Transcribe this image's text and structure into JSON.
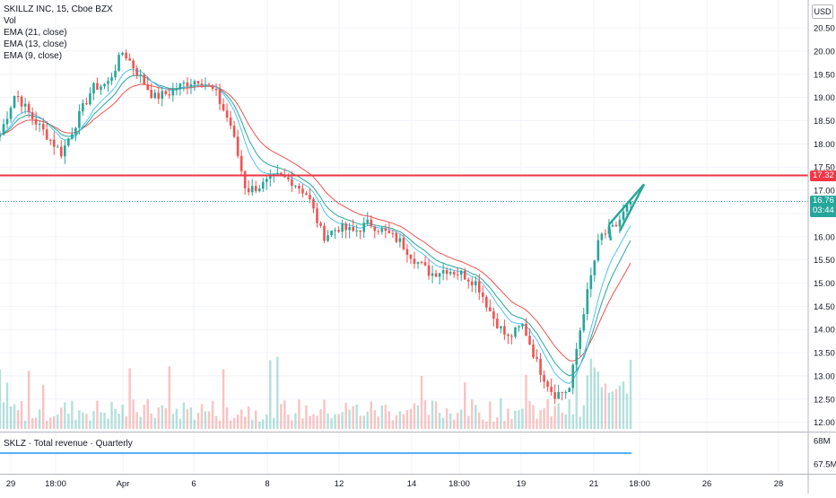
{
  "legend": {
    "symbol": "SKILLZ INC, 15, Cboe BZX",
    "volume": "Vol",
    "ema21": "EMA (21, close)",
    "ema13": "EMA (13, close)",
    "ema9": "EMA (9, close)"
  },
  "currency_label": "USD",
  "sub_panel": {
    "title": "SKLZ · Total revenue · Quarterly",
    "ticks": [
      "68M",
      "67.5M"
    ],
    "line_color": "#2196f3"
  },
  "price_tags": {
    "resistance": {
      "value": "17.32",
      "color": "#f23645"
    },
    "last": {
      "value": "16.76",
      "countdown": "03:44",
      "color": "#26a69a"
    }
  },
  "chart_data": {
    "type": "line",
    "title": "SKILLZ INC, 15, Cboe BZX",
    "y_axis": {
      "ticks": [
        "20.50",
        "20.00",
        "19.50",
        "19.00",
        "18.50",
        "18.00",
        "17.50",
        "17.00",
        "16.50",
        "16.00",
        "15.50",
        "15.00",
        "14.50",
        "14.00",
        "13.50",
        "13.00",
        "12.50",
        "12.00"
      ],
      "range": [
        11.8,
        21.1
      ]
    },
    "x_axis": {
      "ticks": [
        "29",
        "18:00",
        "Apr",
        "6",
        "8",
        "12",
        "14",
        "18:00",
        "19",
        "21",
        "18:00",
        "26",
        "28"
      ]
    },
    "price_path": [
      {
        "x": "29",
        "y": 18.2
      },
      {
        "x": "",
        "y": 19.1
      },
      {
        "x": "",
        "y": 18.6
      },
      {
        "x": "18:00",
        "y": 18.2
      },
      {
        "x": "",
        "y": 17.8
      },
      {
        "x": "",
        "y": 18.5
      },
      {
        "x": "",
        "y": 19.2
      },
      {
        "x": "",
        "y": 19.3
      },
      {
        "x": "Apr",
        "y": 20.0
      },
      {
        "x": "",
        "y": 19.5
      },
      {
        "x": "",
        "y": 19.0
      },
      {
        "x": "",
        "y": 19.1
      },
      {
        "x": "6",
        "y": 19.3
      },
      {
        "x": "",
        "y": 19.4
      },
      {
        "x": "",
        "y": 19.1
      },
      {
        "x": "",
        "y": 18.4
      },
      {
        "x": "8",
        "y": 17.0
      },
      {
        "x": "",
        "y": 17.1
      },
      {
        "x": "",
        "y": 17.3
      },
      {
        "x": "",
        "y": 17.2
      },
      {
        "x": "12",
        "y": 16.9
      },
      {
        "x": "",
        "y": 16.0
      },
      {
        "x": "",
        "y": 16.2
      },
      {
        "x": "",
        "y": 16.1
      },
      {
        "x": "14",
        "y": 16.3
      },
      {
        "x": "",
        "y": 16.1
      },
      {
        "x": "",
        "y": 15.9
      },
      {
        "x": "18:00",
        "y": 15.5
      },
      {
        "x": "",
        "y": 15.2
      },
      {
        "x": "",
        "y": 15.3
      },
      {
        "x": "",
        "y": 15.2
      },
      {
        "x": "19",
        "y": 15.0
      },
      {
        "x": "",
        "y": 14.3
      },
      {
        "x": "",
        "y": 13.8
      },
      {
        "x": "",
        "y": 14.1
      },
      {
        "x": "",
        "y": 13.2
      },
      {
        "x": "",
        "y": 12.6
      },
      {
        "x": "21",
        "y": 12.7
      },
      {
        "x": "",
        "y": 14.5
      },
      {
        "x": "",
        "y": 16.0
      },
      {
        "x": "",
        "y": 16.2
      },
      {
        "x": "",
        "y": 16.76
      }
    ],
    "series": [
      {
        "name": "EMA (21, close)",
        "color": "#ef5350"
      },
      {
        "name": "EMA (13, close)",
        "color": "#26a69a"
      },
      {
        "name": "EMA (9, close)",
        "color": "#4fc3f7"
      }
    ],
    "horizontal_line": {
      "value": 17.32,
      "color": "#f23645"
    },
    "last_price": 16.76,
    "pattern": {
      "type": "rising wedge",
      "color": "#26a69a"
    },
    "grid": true
  }
}
